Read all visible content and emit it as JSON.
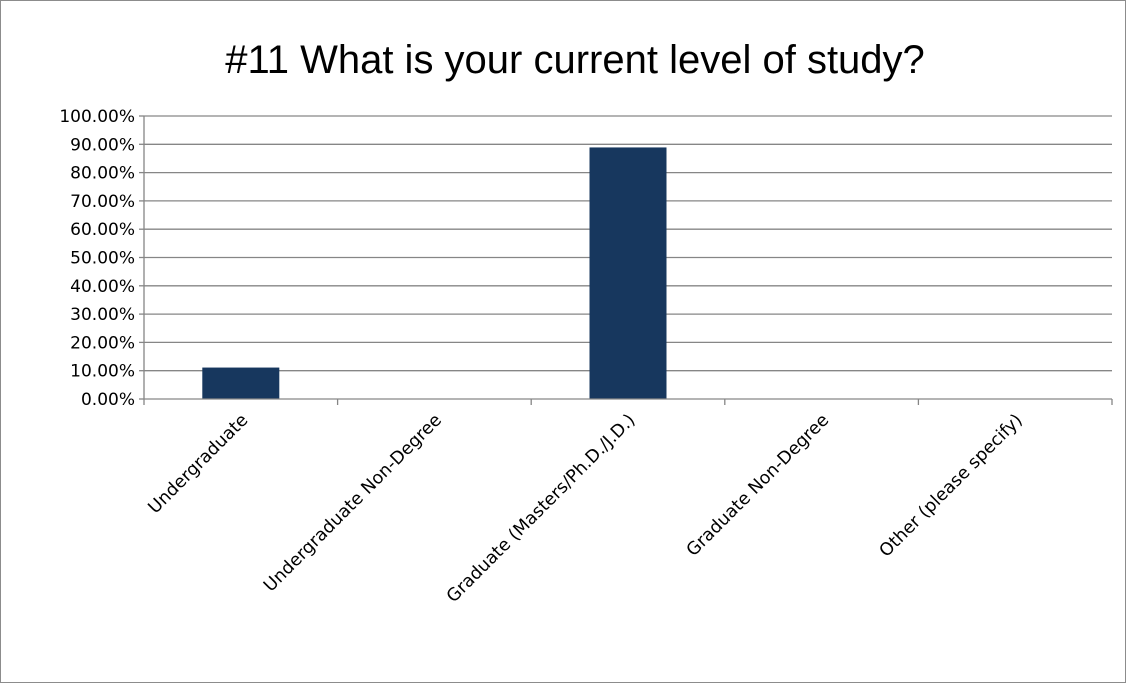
{
  "chart_data": {
    "type": "bar",
    "title": "#11 What is your current level of study?",
    "categories": [
      "Undergraduate",
      "Undergraduate Non-Degree",
      "Graduate (Masters/Ph.D./J.D.)",
      "Graduate Non-Degree",
      "Other (please specify)"
    ],
    "values": [
      11.11,
      0,
      88.89,
      0,
      0
    ],
    "yticks": [
      "0.00%",
      "10.00%",
      "20.00%",
      "30.00%",
      "40.00%",
      "50.00%",
      "60.00%",
      "70.00%",
      "80.00%",
      "90.00%",
      "100.00%"
    ],
    "ylim": [
      0,
      100
    ],
    "xlabel": "",
    "ylabel": "",
    "grid": true,
    "legend": "none",
    "bar_color": "#17375e"
  }
}
